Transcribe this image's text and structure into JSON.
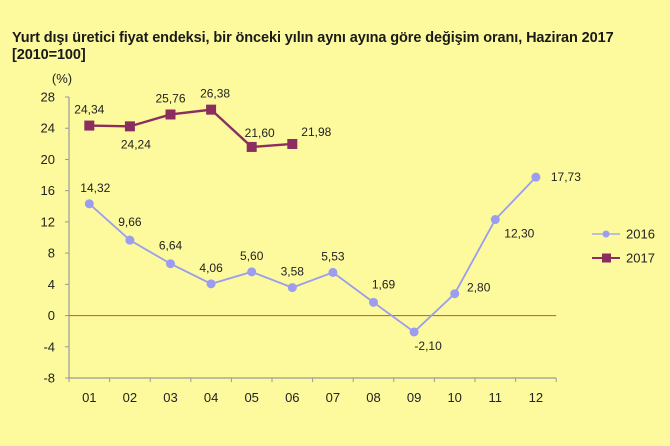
{
  "title_line1": "Yurt dışı üretici fiyat endeksi, bir önceki yılın aynı ayına göre değişim oranı, Haziran 2017",
  "title_line2": "[2010=100]",
  "chart_data": {
    "type": "line",
    "title": "Yurt dışı üretici fiyat endeksi, bir önceki yılın aynı ayına göre değişim oranı, Haziran 2017 [2010=100]",
    "xlabel": "",
    "ylabel": "(%)",
    "categories": [
      "01",
      "02",
      "03",
      "04",
      "05",
      "06",
      "07",
      "08",
      "09",
      "10",
      "11",
      "12"
    ],
    "yticks": [
      28,
      24,
      20,
      16,
      12,
      8,
      4,
      0,
      -4,
      -8
    ],
    "ylim": [
      -8,
      28
    ],
    "grid": false,
    "legend_position": "right",
    "series": [
      {
        "name": "2016",
        "color": "#9c9cf0",
        "marker": "circle",
        "values": [
          14.32,
          9.66,
          6.64,
          4.06,
          5.6,
          3.58,
          5.53,
          1.69,
          -2.1,
          2.8,
          12.3,
          17.73
        ],
        "labels": [
          "14,32",
          "9,66",
          "6,64",
          "4,06",
          "5,60",
          "3,58",
          "5,53",
          "1,69",
          "-2,10",
          "2,80",
          "12,30",
          "17,73"
        ]
      },
      {
        "name": "2017",
        "color": "#8b2e5f",
        "marker": "square",
        "values": [
          24.34,
          24.24,
          25.76,
          26.38,
          21.6,
          21.98
        ],
        "labels": [
          "24,34",
          "24,24",
          "25,76",
          "26,38",
          "21,60",
          "21,98"
        ]
      }
    ],
    "zero_line_color": "#d0605a"
  }
}
